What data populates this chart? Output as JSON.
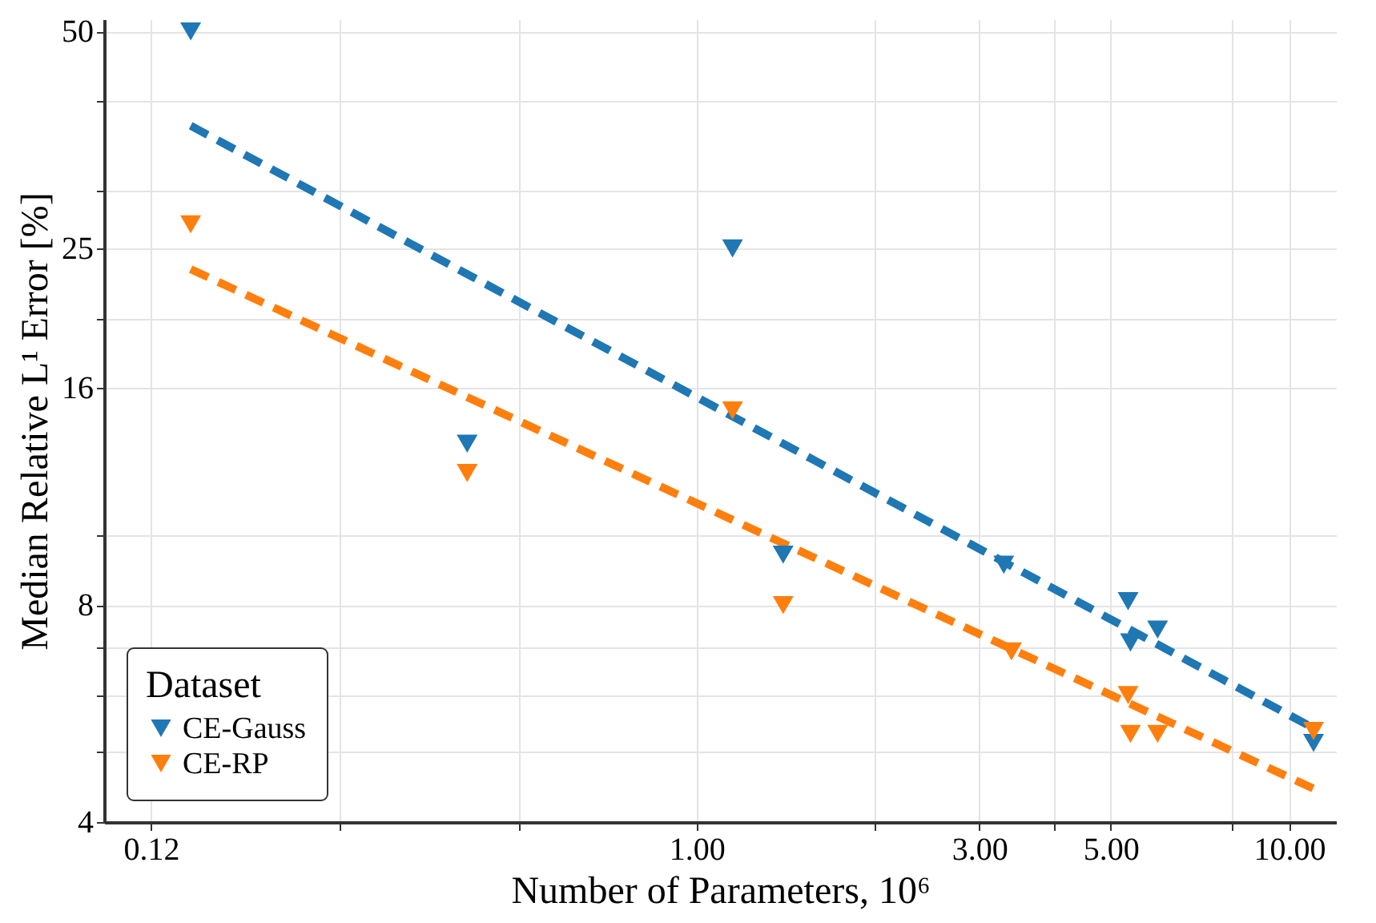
{
  "chart_data": {
    "type": "scatter",
    "xlabel": "Number of Parameters, 10⁶",
    "ylabel": "Median Relative L¹ Error [%]",
    "legend_title": "Dataset",
    "legend": "bottom left",
    "log": "xy",
    "grid": true,
    "marker": "triangle",
    "xlim": [
      0.1,
      12
    ],
    "ylim": [
      4,
      52
    ],
    "xticks": [
      {
        "value": 0.12,
        "label": "0.12"
      },
      {
        "value": 0.25,
        "label": null
      },
      {
        "value": 0.5,
        "label": null
      },
      {
        "value": 1,
        "label": "1.00"
      },
      {
        "value": 2,
        "label": null
      },
      {
        "value": 3,
        "label": "3.00"
      },
      {
        "value": 4,
        "label": null
      },
      {
        "value": 5,
        "label": "5.00"
      },
      {
        "value": 8,
        "label": null
      },
      {
        "value": 10,
        "label": "10.00"
      }
    ],
    "yticks": [
      4,
      {
        "value": 5,
        "label": null
      },
      {
        "value": 6,
        "label": null
      },
      {
        "value": 7,
        "label": null
      },
      8,
      {
        "value": 10,
        "label": null
      },
      16,
      {
        "value": 20,
        "label": null
      },
      25,
      {
        "value": 30,
        "label": null
      },
      {
        "value": 40,
        "label": null
      },
      50
    ],
    "series": [
      {
        "name": "CE-Gauss",
        "color": "#1f77b4",
        "x": [
          0.14,
          1.15,
          0.41,
          1.4,
          3.3,
          5.35,
          5.4,
          6.0,
          11.0
        ],
        "values": [
          50,
          25,
          13.4,
          9.4,
          9.1,
          8.1,
          7.1,
          7.4,
          5.15
        ]
      },
      {
        "name": "CE-RP",
        "color": "#ff7f0e",
        "x": [
          0.14,
          0.41,
          1.15,
          1.4,
          3.4,
          5.35,
          5.4,
          6.0,
          11.0
        ],
        "values": [
          27,
          12.2,
          14.9,
          8.0,
          6.9,
          6.0,
          5.3,
          5.3,
          5.35
        ]
      },
      {
        "type": "line",
        "color": "#1f77b4",
        "line_style": "dashed",
        "marker": "none",
        "x": [
          0.14,
          11.0
        ],
        "values": [
          37,
          5.4
        ]
      },
      {
        "type": "line",
        "color": "#ff7f0e",
        "line_style": "dashed",
        "marker": "none",
        "x": [
          0.14,
          11.0
        ],
        "values": [
          23.4,
          4.45
        ]
      }
    ]
  }
}
